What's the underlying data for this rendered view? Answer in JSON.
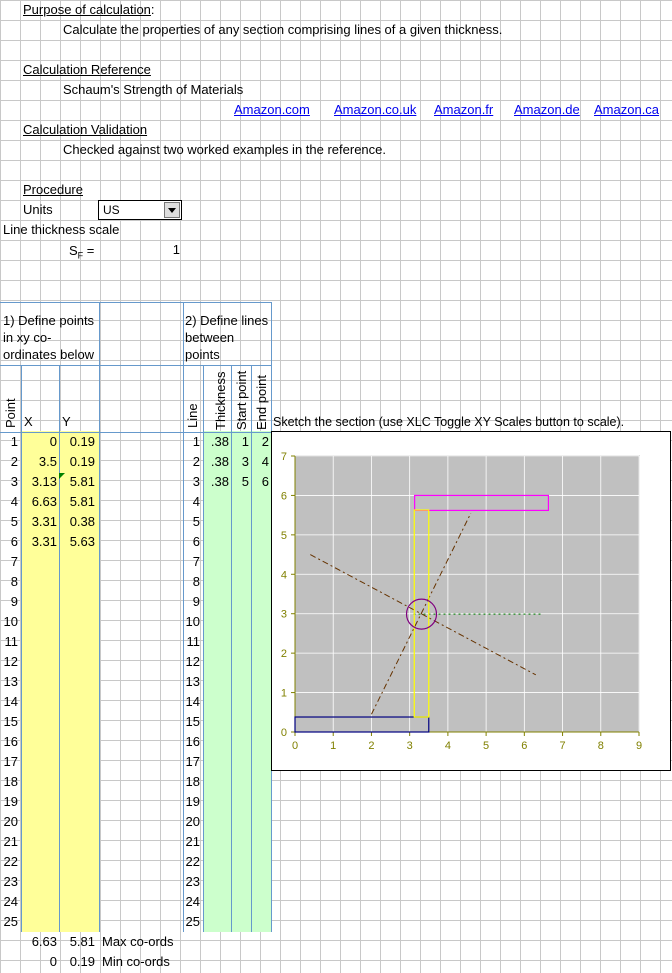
{
  "purpose_label": "Purpose of calculation",
  "purpose_colon": ":",
  "purpose_text": "Calculate the properties of any section comprising lines of a given thickness.",
  "reference_label": "Calculation Reference",
  "reference_text": "Schaum's Strength of Materials",
  "links": [
    "Amazon.com",
    "Amazon.co.uk",
    "Amazon.fr",
    "Amazon.de",
    "Amazon.ca"
  ],
  "validation_label": "Calculation Validation",
  "validation_text": "Checked against two worked examples in the reference.",
  "procedure_label": "Procedure",
  "units_label": "Units",
  "units_value": "US",
  "line_scale_label": "Line thickness scale",
  "sf_label": "S",
  "sf_sub": "F",
  "sf_eq": " =",
  "sf_value": "1",
  "step1": [
    "1) Define points",
    "in xy co-",
    "ordinates below"
  ],
  "step2": [
    "2) Define lines",
    "between",
    "points"
  ],
  "headers": {
    "point": "Point",
    "x": "X",
    "y": "Y",
    "line": "Line",
    "thickness": "Thickness",
    "start": "Start point",
    "end": "End point"
  },
  "row_numbers": [
    "1",
    "2",
    "3",
    "4",
    "5",
    "6",
    "7",
    "8",
    "9",
    "10",
    "11",
    "12",
    "13",
    "14",
    "15",
    "16",
    "17",
    "18",
    "19",
    "20",
    "21",
    "22",
    "23",
    "24",
    "25"
  ],
  "points": [
    {
      "x": "0",
      "y": "0.19"
    },
    {
      "x": "3.5",
      "y": "0.19"
    },
    {
      "x": "3.13",
      "y": "5.81"
    },
    {
      "x": "6.63",
      "y": "5.81"
    },
    {
      "x": "3.31",
      "y": "0.38"
    },
    {
      "x": "3.31",
      "y": "5.63"
    }
  ],
  "lines": [
    {
      "thickness": ".38",
      "start": "1",
      "end": "2"
    },
    {
      "thickness": ".38",
      "start": "3",
      "end": "4"
    },
    {
      "thickness": ".38",
      "start": "5",
      "end": "6"
    }
  ],
  "max": {
    "x": "6.63",
    "y": "5.81",
    "label": "Max co-ords"
  },
  "min": {
    "x": "0",
    "y": "0.19",
    "label": "Min co-ords"
  },
  "sketch_caption": "Sketch the section (use XLC Toggle XY Scales button to scale).",
  "chart_data": {
    "type": "scatter",
    "xlim": [
      0,
      9
    ],
    "ylim": [
      0,
      7
    ],
    "x_ticks": [
      "0",
      "1",
      "2",
      "3",
      "4",
      "5",
      "6",
      "7",
      "8",
      "9"
    ],
    "y_ticks": [
      "0",
      "1",
      "2",
      "3",
      "4",
      "5",
      "6",
      "7"
    ],
    "grid": true,
    "rectangles": [
      {
        "x1": 0,
        "y1": 0.0,
        "x2": 3.5,
        "y2": 0.38,
        "color": "#000080"
      },
      {
        "x1": 3.13,
        "y1": 5.62,
        "x2": 6.63,
        "y2": 6.0,
        "color": "#ff00ff"
      },
      {
        "x1": 3.12,
        "y1": 0.38,
        "x2": 3.5,
        "y2": 5.63,
        "color": "#ffff00"
      }
    ],
    "centroid": {
      "x": 3.31,
      "y": 2.99
    },
    "principal_axes": [
      {
        "x1": 0.4,
        "y1": 4.5,
        "x2": 6.3,
        "y2": 1.45
      },
      {
        "x1": 2.0,
        "y1": 0.45,
        "x2": 4.6,
        "y2": 5.55
      }
    ],
    "centroid_axis_x": [
      3.1,
      6.5
    ],
    "plot_bg": "#c0c0c0",
    "axis_color": "#808000"
  }
}
